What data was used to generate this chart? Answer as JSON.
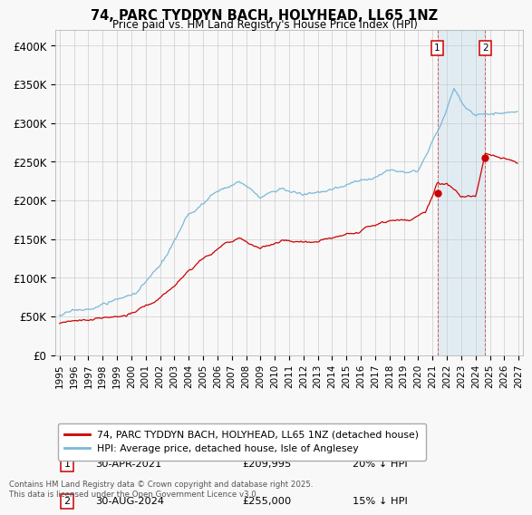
{
  "title": "74, PARC TYDDYN BACH, HOLYHEAD, LL65 1NZ",
  "subtitle": "Price paid vs. HM Land Registry's House Price Index (HPI)",
  "hpi_color": "#7ab8d9",
  "price_color": "#cc0000",
  "background_color": "#f8f8f8",
  "plot_bg_color": "#f8f8f8",
  "grid_color": "#cccccc",
  "ylim": [
    0,
    420000
  ],
  "yticks": [
    0,
    50000,
    100000,
    150000,
    200000,
    250000,
    300000,
    350000,
    400000
  ],
  "ytick_labels": [
    "£0",
    "£50K",
    "£100K",
    "£150K",
    "£200K",
    "£250K",
    "£300K",
    "£350K",
    "£400K"
  ],
  "xlim_start": 1994.7,
  "xlim_end": 2027.3,
  "legend_label_red": "74, PARC TYDDYN BACH, HOLYHEAD, LL65 1NZ (detached house)",
  "legend_label_blue": "HPI: Average price, detached house, Isle of Anglesey",
  "footnote": "Contains HM Land Registry data © Crown copyright and database right 2025.\nThis data is licensed under the Open Government Licence v3.0.",
  "marker1_label": "1",
  "marker1_date": "30-APR-2021",
  "marker1_price": "£209,995",
  "marker1_hpi": "20% ↓ HPI",
  "marker1_x": 2021.33,
  "marker1_y": 209995,
  "marker2_label": "2",
  "marker2_date": "30-AUG-2024",
  "marker2_price": "£255,000",
  "marker2_hpi": "15% ↓ HPI",
  "marker2_x": 2024.67,
  "marker2_y": 255000,
  "shade_x1": 2021.33,
  "shade_x2": 2024.67
}
